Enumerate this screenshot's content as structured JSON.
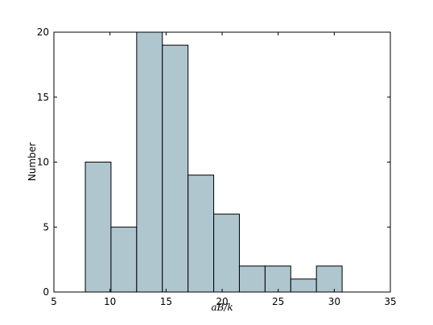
{
  "chart_data": {
    "type": "histogram",
    "x_label": "aB/k",
    "y_label": "Number",
    "bins": [
      7.8,
      10.09,
      12.38,
      14.67,
      16.96,
      19.25,
      21.54,
      23.83,
      26.12,
      28.41,
      30.7
    ],
    "values": [
      10,
      5,
      20,
      19,
      9,
      6,
      2,
      2,
      1,
      2
    ],
    "color": "#afc6cf",
    "xlim": [
      5,
      35
    ],
    "xticks": [
      5,
      10,
      15,
      20,
      25,
      30,
      35
    ],
    "ylim": [
      0,
      20
    ],
    "yticks": [
      0,
      5,
      10,
      15,
      20
    ],
    "grid": false
  }
}
